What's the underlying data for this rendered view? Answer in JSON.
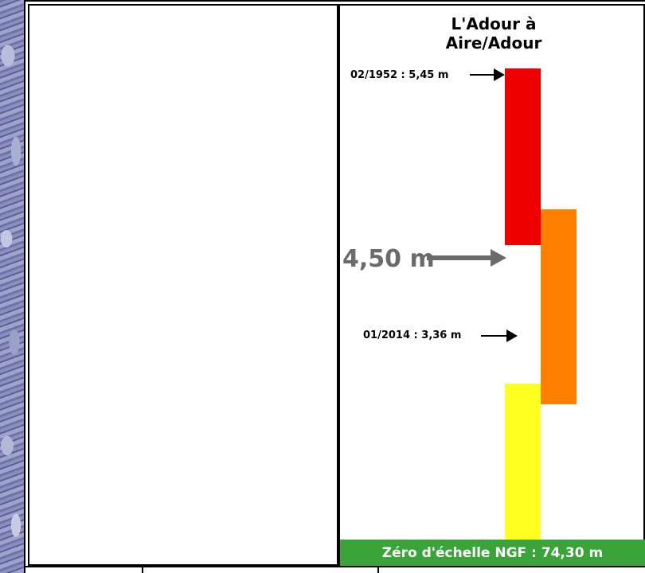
{
  "station": {
    "title": "L'Adour à\nAire/Adour"
  },
  "levels": {
    "historic_1952": "02/1952 : 5,45 m",
    "historic_2014": "01/2014 : 3,36 m",
    "current": "4,50 m"
  },
  "scale": {
    "zero_label": "Zéro d'échelle NGF : 74,30 m"
  },
  "colors": {
    "red": "#ee0000",
    "orange": "#ff8000",
    "yellow": "#ffff22",
    "green": "#3aa33a",
    "current_gray": "#6b6b6b"
  }
}
